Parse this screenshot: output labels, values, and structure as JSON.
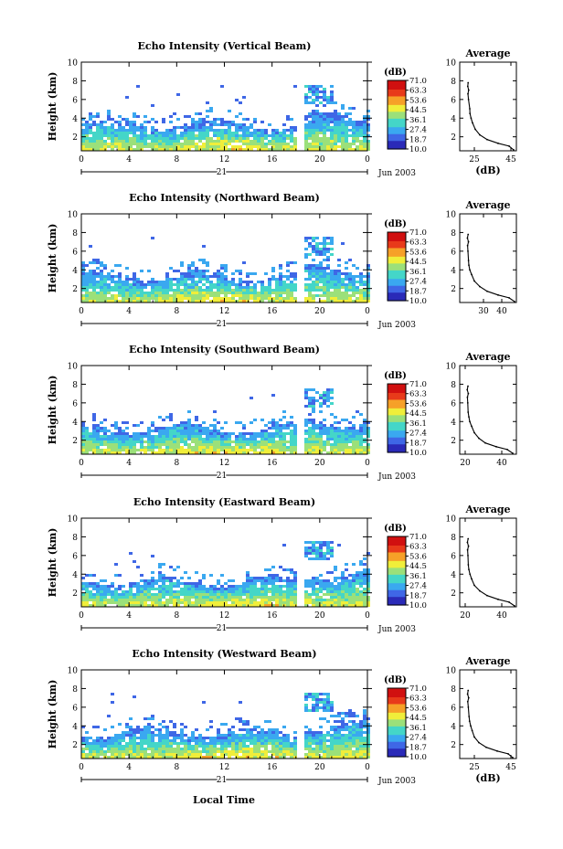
{
  "colors": {
    "colormap": [
      "#2a2ab8",
      "#3f67e6",
      "#3aa8f0",
      "#44d6c8",
      "#9be07a",
      "#f0ee3a",
      "#f6a128",
      "#e83a1a",
      "#d11010"
    ],
    "axes": "#000000"
  },
  "footer": {
    "xlabel": "Local Time"
  },
  "chart_data": [
    {
      "type": "heatmap",
      "title": "Echo Intensity (Vertical Beam)",
      "ylabel": "Height (km)",
      "x_ticks": [
        "0",
        "4",
        "8",
        "12",
        "16",
        "20",
        "0"
      ],
      "xlim": [
        0,
        24
      ],
      "ylim": [
        0.5,
        10
      ],
      "y_ticks": [
        "2",
        "4",
        "6",
        "8",
        "10"
      ],
      "day_label": "21",
      "date_label": "Jun 2003",
      "colorbar": {
        "unit": "(dB)",
        "ticks": [
          "71.0",
          "63.3",
          "53.6",
          "44.5",
          "36.1",
          "27.4",
          "18.7",
          "10.0"
        ]
      },
      "profile": {
        "title": "Average",
        "xlabel": "(dB)",
        "x_ticks": [
          "25",
          "45"
        ],
        "xlim": [
          17,
          48
        ],
        "ylim": [
          0.5,
          10
        ],
        "y_ticks": [
          "2",
          "4",
          "6",
          "8",
          "10"
        ],
        "x": [
          46.5,
          44.0,
          38.0,
          32.0,
          28.0,
          25.5,
          24.0,
          23.2,
          22.6,
          22.5,
          21.8,
          21.5,
          21.9,
          21.4,
          21.6
        ],
        "y": [
          0.6,
          1.0,
          1.3,
          1.7,
          2.2,
          2.8,
          3.5,
          4.0,
          4.5,
          5.0,
          6.0,
          6.6,
          7.0,
          7.4,
          7.8
        ]
      }
    },
    {
      "type": "heatmap",
      "title": "Echo Intensity (Northward Beam)",
      "ylabel": "Height (km)",
      "x_ticks": [
        "0",
        "4",
        "8",
        "12",
        "16",
        "20",
        "0"
      ],
      "xlim": [
        0,
        24
      ],
      "ylim": [
        0.5,
        10
      ],
      "y_ticks": [
        "2",
        "4",
        "6",
        "8",
        "10"
      ],
      "day_label": "21",
      "date_label": "Jun 2003",
      "colorbar": {
        "unit": "(dB)",
        "ticks": [
          "71.0",
          "63.3",
          "53.6",
          "44.5",
          "36.1",
          "27.4",
          "18.7",
          "10.0"
        ]
      },
      "profile": {
        "title": "Average",
        "xlabel": "",
        "x_ticks": [
          "30",
          "40"
        ],
        "xlim": [
          17,
          48
        ],
        "ylim": [
          0.5,
          10
        ],
        "y_ticks": [
          "2",
          "4",
          "6",
          "8",
          "10"
        ],
        "x": [
          47.0,
          44.0,
          38.0,
          32.0,
          28.0,
          25.0,
          23.5,
          22.5,
          22.0,
          21.8,
          21.5,
          21.3,
          21.8,
          21.2,
          21.6
        ],
        "y": [
          0.6,
          1.0,
          1.3,
          1.7,
          2.2,
          2.8,
          3.5,
          4.0,
          4.5,
          5.0,
          6.0,
          6.6,
          7.0,
          7.4,
          7.8
        ]
      }
    },
    {
      "type": "heatmap",
      "title": "Echo Intensity (Southward Beam)",
      "ylabel": "Height (km)",
      "x_ticks": [
        "0",
        "4",
        "8",
        "12",
        "16",
        "20",
        "0"
      ],
      "xlim": [
        0,
        24
      ],
      "ylim": [
        0.5,
        10
      ],
      "y_ticks": [
        "2",
        "4",
        "6",
        "8",
        "10"
      ],
      "day_label": "21",
      "date_label": "Jun 2003",
      "colorbar": {
        "unit": "(dB)",
        "ticks": [
          "71.0",
          "63.3",
          "53.6",
          "44.5",
          "36.1",
          "27.4",
          "18.7",
          "10.0"
        ]
      },
      "profile": {
        "title": "Average",
        "xlabel": "",
        "x_ticks": [
          "20",
          "40"
        ],
        "xlim": [
          17,
          48
        ],
        "ylim": [
          0.5,
          10
        ],
        "y_ticks": [
          "2",
          "4",
          "6",
          "8",
          "10"
        ],
        "x": [
          46.0,
          43.0,
          37.0,
          31.0,
          27.5,
          25.0,
          23.5,
          22.5,
          22.0,
          21.6,
          21.4,
          21.2,
          21.7,
          21.1,
          21.5
        ],
        "y": [
          0.6,
          1.0,
          1.3,
          1.7,
          2.2,
          2.8,
          3.5,
          4.0,
          4.5,
          5.0,
          6.0,
          6.6,
          7.0,
          7.4,
          7.8
        ]
      }
    },
    {
      "type": "heatmap",
      "title": "Echo Intensity (Eastward Beam)",
      "ylabel": "Height (km)",
      "x_ticks": [
        "0",
        "4",
        "8",
        "12",
        "16",
        "20",
        "0"
      ],
      "xlim": [
        0,
        24
      ],
      "ylim": [
        0.5,
        10
      ],
      "y_ticks": [
        "2",
        "4",
        "6",
        "8",
        "10"
      ],
      "day_label": "21",
      "date_label": "Jun 2003",
      "colorbar": {
        "unit": "(dB)",
        "ticks": [
          "71.0",
          "63.3",
          "53.6",
          "44.5",
          "36.1",
          "27.4",
          "18.7",
          "10.0"
        ]
      },
      "profile": {
        "title": "Average",
        "xlabel": "",
        "x_ticks": [
          "20",
          "40"
        ],
        "xlim": [
          17,
          48
        ],
        "ylim": [
          0.5,
          10
        ],
        "y_ticks": [
          "2",
          "4",
          "6",
          "8",
          "10"
        ],
        "x": [
          47.0,
          44.0,
          38.0,
          32.0,
          28.0,
          25.0,
          23.5,
          22.6,
          22.0,
          21.7,
          21.5,
          21.3,
          21.8,
          21.2,
          21.6
        ],
        "y": [
          0.6,
          1.0,
          1.3,
          1.7,
          2.2,
          2.8,
          3.5,
          4.0,
          4.5,
          5.0,
          6.0,
          6.6,
          7.0,
          7.4,
          7.8
        ]
      }
    },
    {
      "type": "heatmap",
      "title": "Echo Intensity (Westward Beam)",
      "ylabel": "Height (km)",
      "x_ticks": [
        "0",
        "4",
        "8",
        "12",
        "16",
        "20",
        "0"
      ],
      "xlim": [
        0,
        24
      ],
      "ylim": [
        0.5,
        10
      ],
      "y_ticks": [
        "2",
        "4",
        "6",
        "8",
        "10"
      ],
      "day_label": "21",
      "date_label": "Jun 2003",
      "colorbar": {
        "unit": "(dB)",
        "ticks": [
          "71.0",
          "63.3",
          "53.6",
          "44.5",
          "36.1",
          "27.4",
          "18.7",
          "10.0"
        ]
      },
      "profile": {
        "title": "Average",
        "xlabel": "(dB)",
        "x_ticks": [
          "25",
          "45"
        ],
        "xlim": [
          17,
          48
        ],
        "ylim": [
          0.5,
          10
        ],
        "y_ticks": [
          "2",
          "4",
          "6",
          "8",
          "10"
        ],
        "x": [
          46.0,
          43.5,
          37.5,
          31.5,
          27.5,
          25.0,
          23.8,
          23.0,
          22.4,
          22.1,
          21.7,
          21.4,
          21.9,
          21.3,
          21.6
        ],
        "y": [
          0.6,
          1.0,
          1.3,
          1.7,
          2.2,
          2.8,
          3.5,
          4.0,
          4.5,
          5.0,
          6.0,
          6.6,
          7.0,
          7.4,
          7.8
        ]
      }
    }
  ]
}
